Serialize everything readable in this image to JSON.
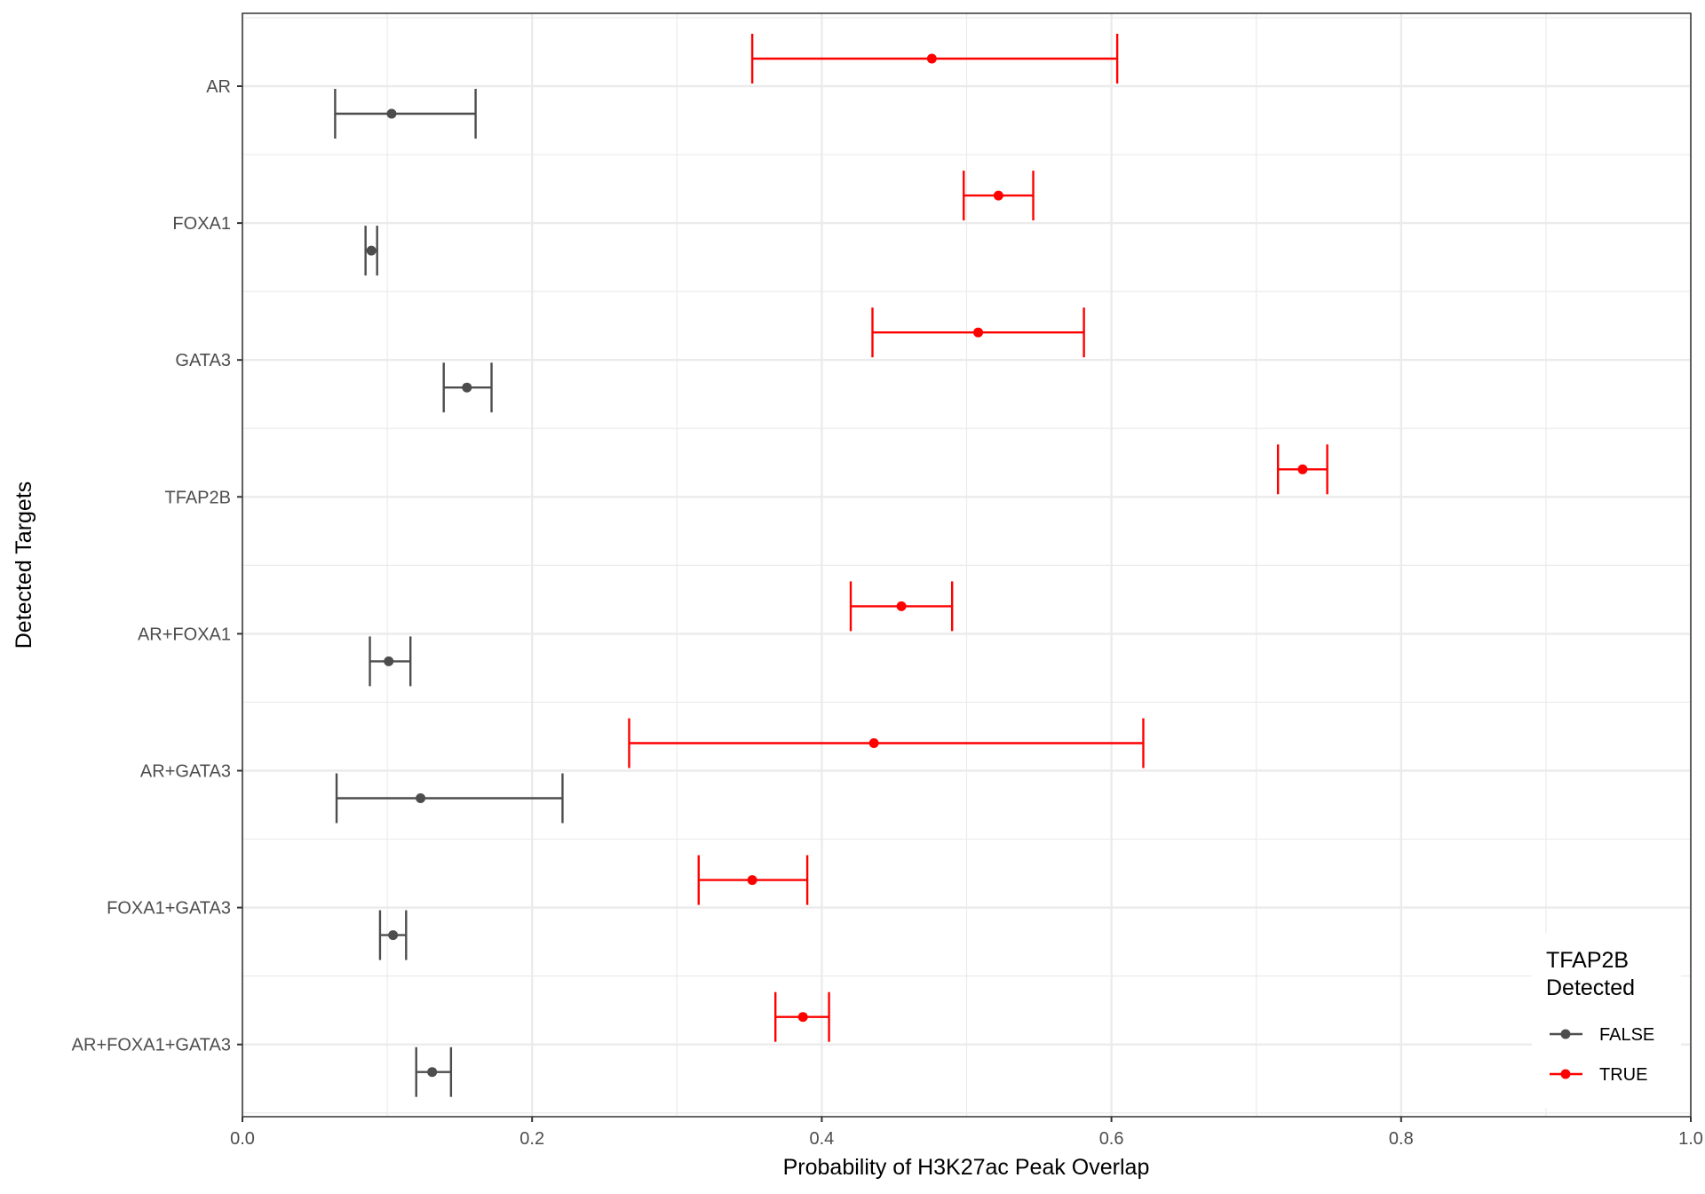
{
  "chart_data": {
    "type": "errorbar",
    "title": "",
    "xlabel": "Probability of H3K27ac Peak Overlap",
    "ylabel": "Detected Targets",
    "xlim": [
      0.0,
      1.0
    ],
    "x_ticks": [
      "0.0",
      "0.2",
      "0.4",
      "0.6",
      "0.8",
      "1.0"
    ],
    "x_tick_values": [
      0.0,
      0.2,
      0.4,
      0.6,
      0.8,
      1.0
    ],
    "grid": true,
    "categories": [
      "AR",
      "FOXA1",
      "GATA3",
      "TFAP2B",
      "AR+FOXA1",
      "AR+GATA3",
      "FOXA1+GATA3",
      "AR+FOXA1+GATA3"
    ],
    "legend": {
      "title_line1": "TFAP2B",
      "title_line2": "Detected",
      "position": "bottom-right inside",
      "entries": [
        "FALSE",
        "TRUE"
      ]
    },
    "series": [
      {
        "name": "FALSE",
        "color": "#4d4d4d",
        "points": [
          {
            "category": "AR",
            "mean": 0.103,
            "lower": 0.064,
            "upper": 0.161
          },
          {
            "category": "FOXA1",
            "mean": 0.089,
            "lower": 0.085,
            "upper": 0.093
          },
          {
            "category": "GATA3",
            "mean": 0.155,
            "lower": 0.139,
            "upper": 0.172
          },
          {
            "category": "AR+FOXA1",
            "mean": 0.101,
            "lower": 0.088,
            "upper": 0.116
          },
          {
            "category": "AR+GATA3",
            "mean": 0.123,
            "lower": 0.065,
            "upper": 0.221
          },
          {
            "category": "FOXA1+GATA3",
            "mean": 0.104,
            "lower": 0.095,
            "upper": 0.113
          },
          {
            "category": "AR+FOXA1+GATA3",
            "mean": 0.131,
            "lower": 0.12,
            "upper": 0.144
          }
        ]
      },
      {
        "name": "TRUE",
        "color": "#ff0000",
        "points": [
          {
            "category": "AR",
            "mean": 0.476,
            "lower": 0.352,
            "upper": 0.604
          },
          {
            "category": "FOXA1",
            "mean": 0.522,
            "lower": 0.498,
            "upper": 0.546
          },
          {
            "category": "GATA3",
            "mean": 0.508,
            "lower": 0.435,
            "upper": 0.581
          },
          {
            "category": "TFAP2B",
            "mean": 0.732,
            "lower": 0.715,
            "upper": 0.749
          },
          {
            "category": "AR+FOXA1",
            "mean": 0.455,
            "lower": 0.42,
            "upper": 0.49
          },
          {
            "category": "AR+GATA3",
            "mean": 0.436,
            "lower": 0.267,
            "upper": 0.622
          },
          {
            "category": "FOXA1+GATA3",
            "mean": 0.352,
            "lower": 0.315,
            "upper": 0.39
          },
          {
            "category": "AR+FOXA1+GATA3",
            "mean": 0.387,
            "lower": 0.368,
            "upper": 0.405
          }
        ]
      }
    ]
  }
}
